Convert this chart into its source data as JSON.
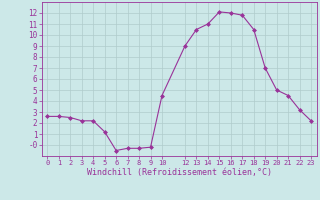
{
  "x": [
    0,
    1,
    2,
    3,
    4,
    5,
    6,
    7,
    8,
    9,
    10,
    12,
    13,
    14,
    15,
    16,
    17,
    18,
    19,
    20,
    21,
    22,
    23
  ],
  "y": [
    2.6,
    2.6,
    2.5,
    2.2,
    2.2,
    1.2,
    -0.5,
    -0.3,
    -0.3,
    -0.2,
    4.5,
    9.0,
    10.5,
    11.0,
    12.1,
    12.0,
    11.8,
    10.5,
    7.0,
    5.0,
    4.5,
    3.2,
    2.2
  ],
  "line_color": "#993399",
  "marker": "D",
  "marker_size": 2.0,
  "bg_color": "#cce8e8",
  "grid_color": "#b0cccc",
  "xlabel": "Windchill (Refroidissement éolien,°C)",
  "xlabel_color": "#993399",
  "tick_color": "#993399",
  "ylim": [
    -1,
    13
  ],
  "xlim": [
    -0.5,
    23.5
  ],
  "ytick_labels": [
    "-0",
    "1",
    "2",
    "3",
    "4",
    "5",
    "6",
    "7",
    "8",
    "9",
    "10",
    "11",
    "12"
  ],
  "ytick_values": [
    0,
    1,
    2,
    3,
    4,
    5,
    6,
    7,
    8,
    9,
    10,
    11,
    12
  ],
  "xtick_labels": [
    "0",
    "1",
    "2",
    "3",
    "4",
    "5",
    "6",
    "7",
    "8",
    "9",
    "10",
    "12",
    "13",
    "14",
    "15",
    "16",
    "17",
    "18",
    "19",
    "20",
    "21",
    "22",
    "23"
  ],
  "xtick_values": [
    0,
    1,
    2,
    3,
    4,
    5,
    6,
    7,
    8,
    9,
    10,
    12,
    13,
    14,
    15,
    16,
    17,
    18,
    19,
    20,
    21,
    22,
    23
  ]
}
